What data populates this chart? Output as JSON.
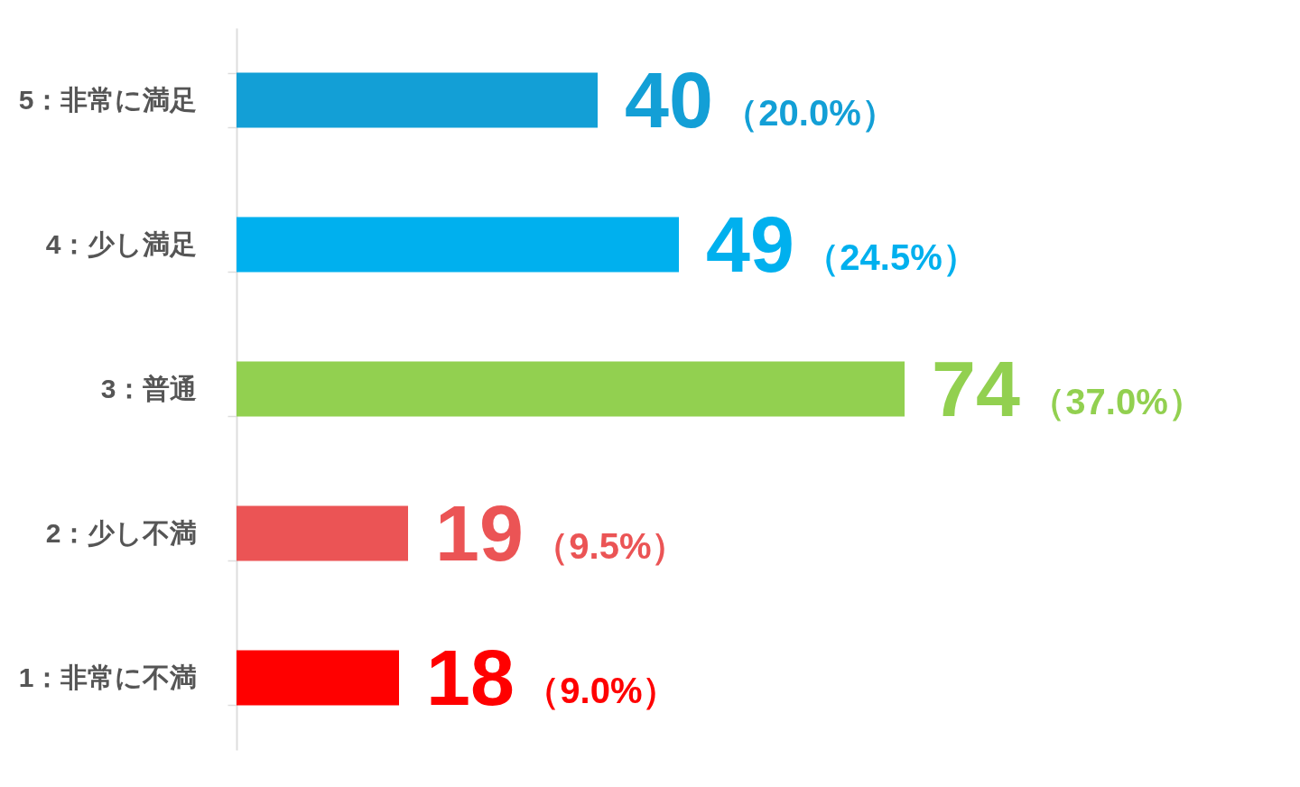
{
  "chart_data": {
    "type": "bar",
    "orientation": "horizontal",
    "categories": [
      "5：非常に満足",
      "4：少し満足",
      "3：普通",
      "2：少し不満",
      "1：非常に不満"
    ],
    "values": [
      40,
      49,
      74,
      19,
      18
    ],
    "colors": [
      "#139fd6",
      "#00b0ee",
      "#92d050",
      "#eb5455",
      "#ff0000"
    ],
    "data_labels": true,
    "annotations": [
      "（20.0%）",
      "（24.5%）",
      "（37.0%）",
      "（9.5%）",
      "（9.0%）"
    ]
  }
}
